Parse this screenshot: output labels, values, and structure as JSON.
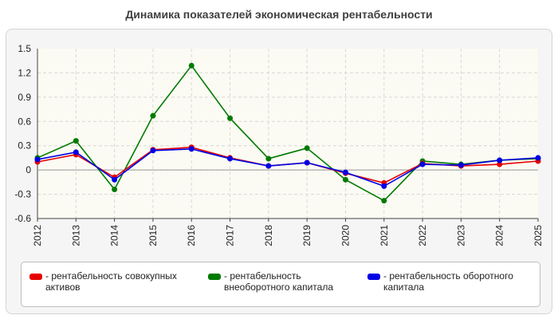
{
  "chart_data": {
    "type": "line",
    "title": "Динамика показателей экономическая рентабельности",
    "x": [
      "2012",
      "2013",
      "2014",
      "2015",
      "2016",
      "2017",
      "2018",
      "2019",
      "2020",
      "2021",
      "2022",
      "2023",
      "2024",
      "2025"
    ],
    "ylim": [
      -0.6,
      1.5
    ],
    "yticks": [
      "1.5",
      "1.2",
      "0.9",
      "0.6",
      "0.3",
      "0",
      "-0.3",
      "-0.6"
    ],
    "grid": true,
    "legend_position": "bottom",
    "series": [
      {
        "name": "- рентабельность совокупных активов",
        "color": "#e60000",
        "values": [
          0.1,
          0.19,
          -0.09,
          0.25,
          0.28,
          0.15,
          0.05,
          0.09,
          -0.04,
          -0.16,
          0.08,
          0.05,
          0.07,
          0.11
        ]
      },
      {
        "name": "- рентабельность внеоборотного капитала",
        "color": "#007a00",
        "values": [
          0.15,
          0.36,
          -0.24,
          0.67,
          1.29,
          0.64,
          0.14,
          0.27,
          -0.12,
          -0.38,
          0.11,
          0.07,
          0.12,
          0.14
        ]
      },
      {
        "name": "- рентабельность оборотного капитала",
        "color": "#0000e6",
        "values": [
          0.13,
          0.22,
          -0.12,
          0.24,
          0.26,
          0.14,
          0.05,
          0.09,
          -0.03,
          -0.2,
          0.07,
          0.06,
          0.12,
          0.15
        ]
      }
    ]
  }
}
